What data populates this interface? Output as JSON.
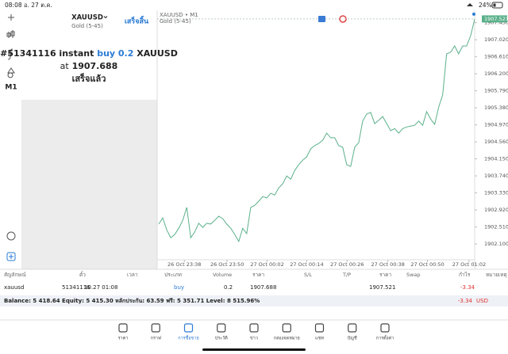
{
  "status_bar": {
    "time": "08:08",
    "date": "อ. 27 ต.ค.",
    "battery": "24%"
  },
  "toolbar": {
    "timeframe": "M1"
  },
  "panel": {
    "symbol": "XAUUSD",
    "description": "Gold (5-45)",
    "done": "เสร็จสิ้น",
    "message": {
      "order": "#51341116 instant",
      "trade": "buy 0.2",
      "symbol": "XAUUSD",
      "price_prefix": "at",
      "price": "1907.688",
      "status": "เสร็จแล้ว"
    }
  },
  "chart_data": {
    "type": "line",
    "title": "XAUUSD • M1",
    "subtitle": "Gold (5-45)",
    "last_price": 1907.521,
    "color": "#5bb08a",
    "values": [
      1902.58,
      1902.73,
      1902.44,
      1902.25,
      1902.33,
      1902.48,
      1902.67,
      1902.98,
      1902.25,
      1902.39,
      1902.6,
      1902.5,
      1902.6,
      1902.58,
      1902.67,
      1902.77,
      1902.71,
      1902.58,
      1902.48,
      1902.33,
      1902.16,
      1902.48,
      1902.35,
      1902.98,
      1903.03,
      1903.13,
      1903.24,
      1903.21,
      1903.32,
      1903.28,
      1903.45,
      1903.55,
      1903.74,
      1903.66,
      1903.87,
      1904.01,
      1904.12,
      1904.2,
      1904.39,
      1904.47,
      1904.52,
      1904.6,
      1904.77,
      1904.66,
      1904.66,
      1904.47,
      1904.43,
      1904.01,
      1903.97,
      1904.43,
      1904.54,
      1905.06,
      1905.23,
      1905.27,
      1905.0,
      1905.08,
      1905.17,
      1905.0,
      1904.83,
      1904.88,
      1904.77,
      1904.88,
      1904.92,
      1904.94,
      1904.96,
      1905.06,
      1904.96,
      1905.29,
      1905.11,
      1904.98,
      1905.4,
      1905.69,
      1906.68,
      1906.72,
      1906.87,
      1906.68,
      1906.87,
      1906.87,
      1907.12,
      1907.52
    ],
    "xlim": [
      0,
      79
    ],
    "xticks": [
      {
        "value": 6.4,
        "label": "26 Oct 23:38"
      },
      {
        "value": 17.1,
        "label": "26 Oct 23:50"
      },
      {
        "value": 27.1,
        "label": "27 Oct 00:02"
      },
      {
        "value": 37.0,
        "label": "27 Oct 00:14"
      },
      {
        "value": 47.1,
        "label": "27 Oct 00:26"
      },
      {
        "value": 57.3,
        "label": "27 Oct 00:38"
      },
      {
        "value": 67.2,
        "label": "27 Oct 00:50"
      },
      {
        "value": 77.6,
        "label": "27 Oct 01:02"
      }
    ],
    "ylim": [
      1901.72,
      1907.71
    ],
    "yticks": [
      {
        "value": 1907.43,
        "label": "1907.430"
      },
      {
        "value": 1907.02,
        "label": "1907.020"
      },
      {
        "value": 1906.61,
        "label": "1906.610"
      },
      {
        "value": 1906.2,
        "label": "1906.200"
      },
      {
        "value": 1905.79,
        "label": "1905.790"
      },
      {
        "value": 1905.38,
        "label": "1905.380"
      },
      {
        "value": 1904.97,
        "label": "1904.970"
      },
      {
        "value": 1904.56,
        "label": "1904.560"
      },
      {
        "value": 1904.15,
        "label": "1904.150"
      },
      {
        "value": 1903.74,
        "label": "1903.740"
      },
      {
        "value": 1903.33,
        "label": "1903.330"
      },
      {
        "value": 1902.92,
        "label": "1902.920"
      },
      {
        "value": 1902.51,
        "label": "1902.510"
      },
      {
        "value": 1902.1,
        "label": "1902.100"
      }
    ]
  },
  "table": {
    "headers": [
      "สัญลักษณ์",
      "ตั๋ว",
      "เวลา",
      "ประเภท",
      "Volume",
      "ราคา",
      "S/L",
      "T/P",
      "ราคา",
      "Swap",
      "กำไร",
      "หมายเหตุ"
    ],
    "position": {
      "symbol": "xauusd",
      "ticket": "51341116",
      "time": "10.27 01:08",
      "type": "buy",
      "volume": "0.2",
      "price_open": "1907.688",
      "price_current": "1907.521",
      "profit": "-3.34"
    },
    "summary": {
      "text": "Balance: 5 418.64 Equity: 5 415.30 หลักประกัน: 63.59 ฟรี: 5 351.71 Level: 8 515.96%",
      "profit": "-3.34",
      "currency": "USD"
    }
  },
  "tabs": {
    "items": [
      "ราคา",
      "กราฟ",
      "การซื้อขาย",
      "ประวัติ",
      "ข่าว",
      "กล่องจดหมาย",
      "แชท",
      "บัญชี",
      "การตั้งค่า"
    ],
    "active": 2
  }
}
